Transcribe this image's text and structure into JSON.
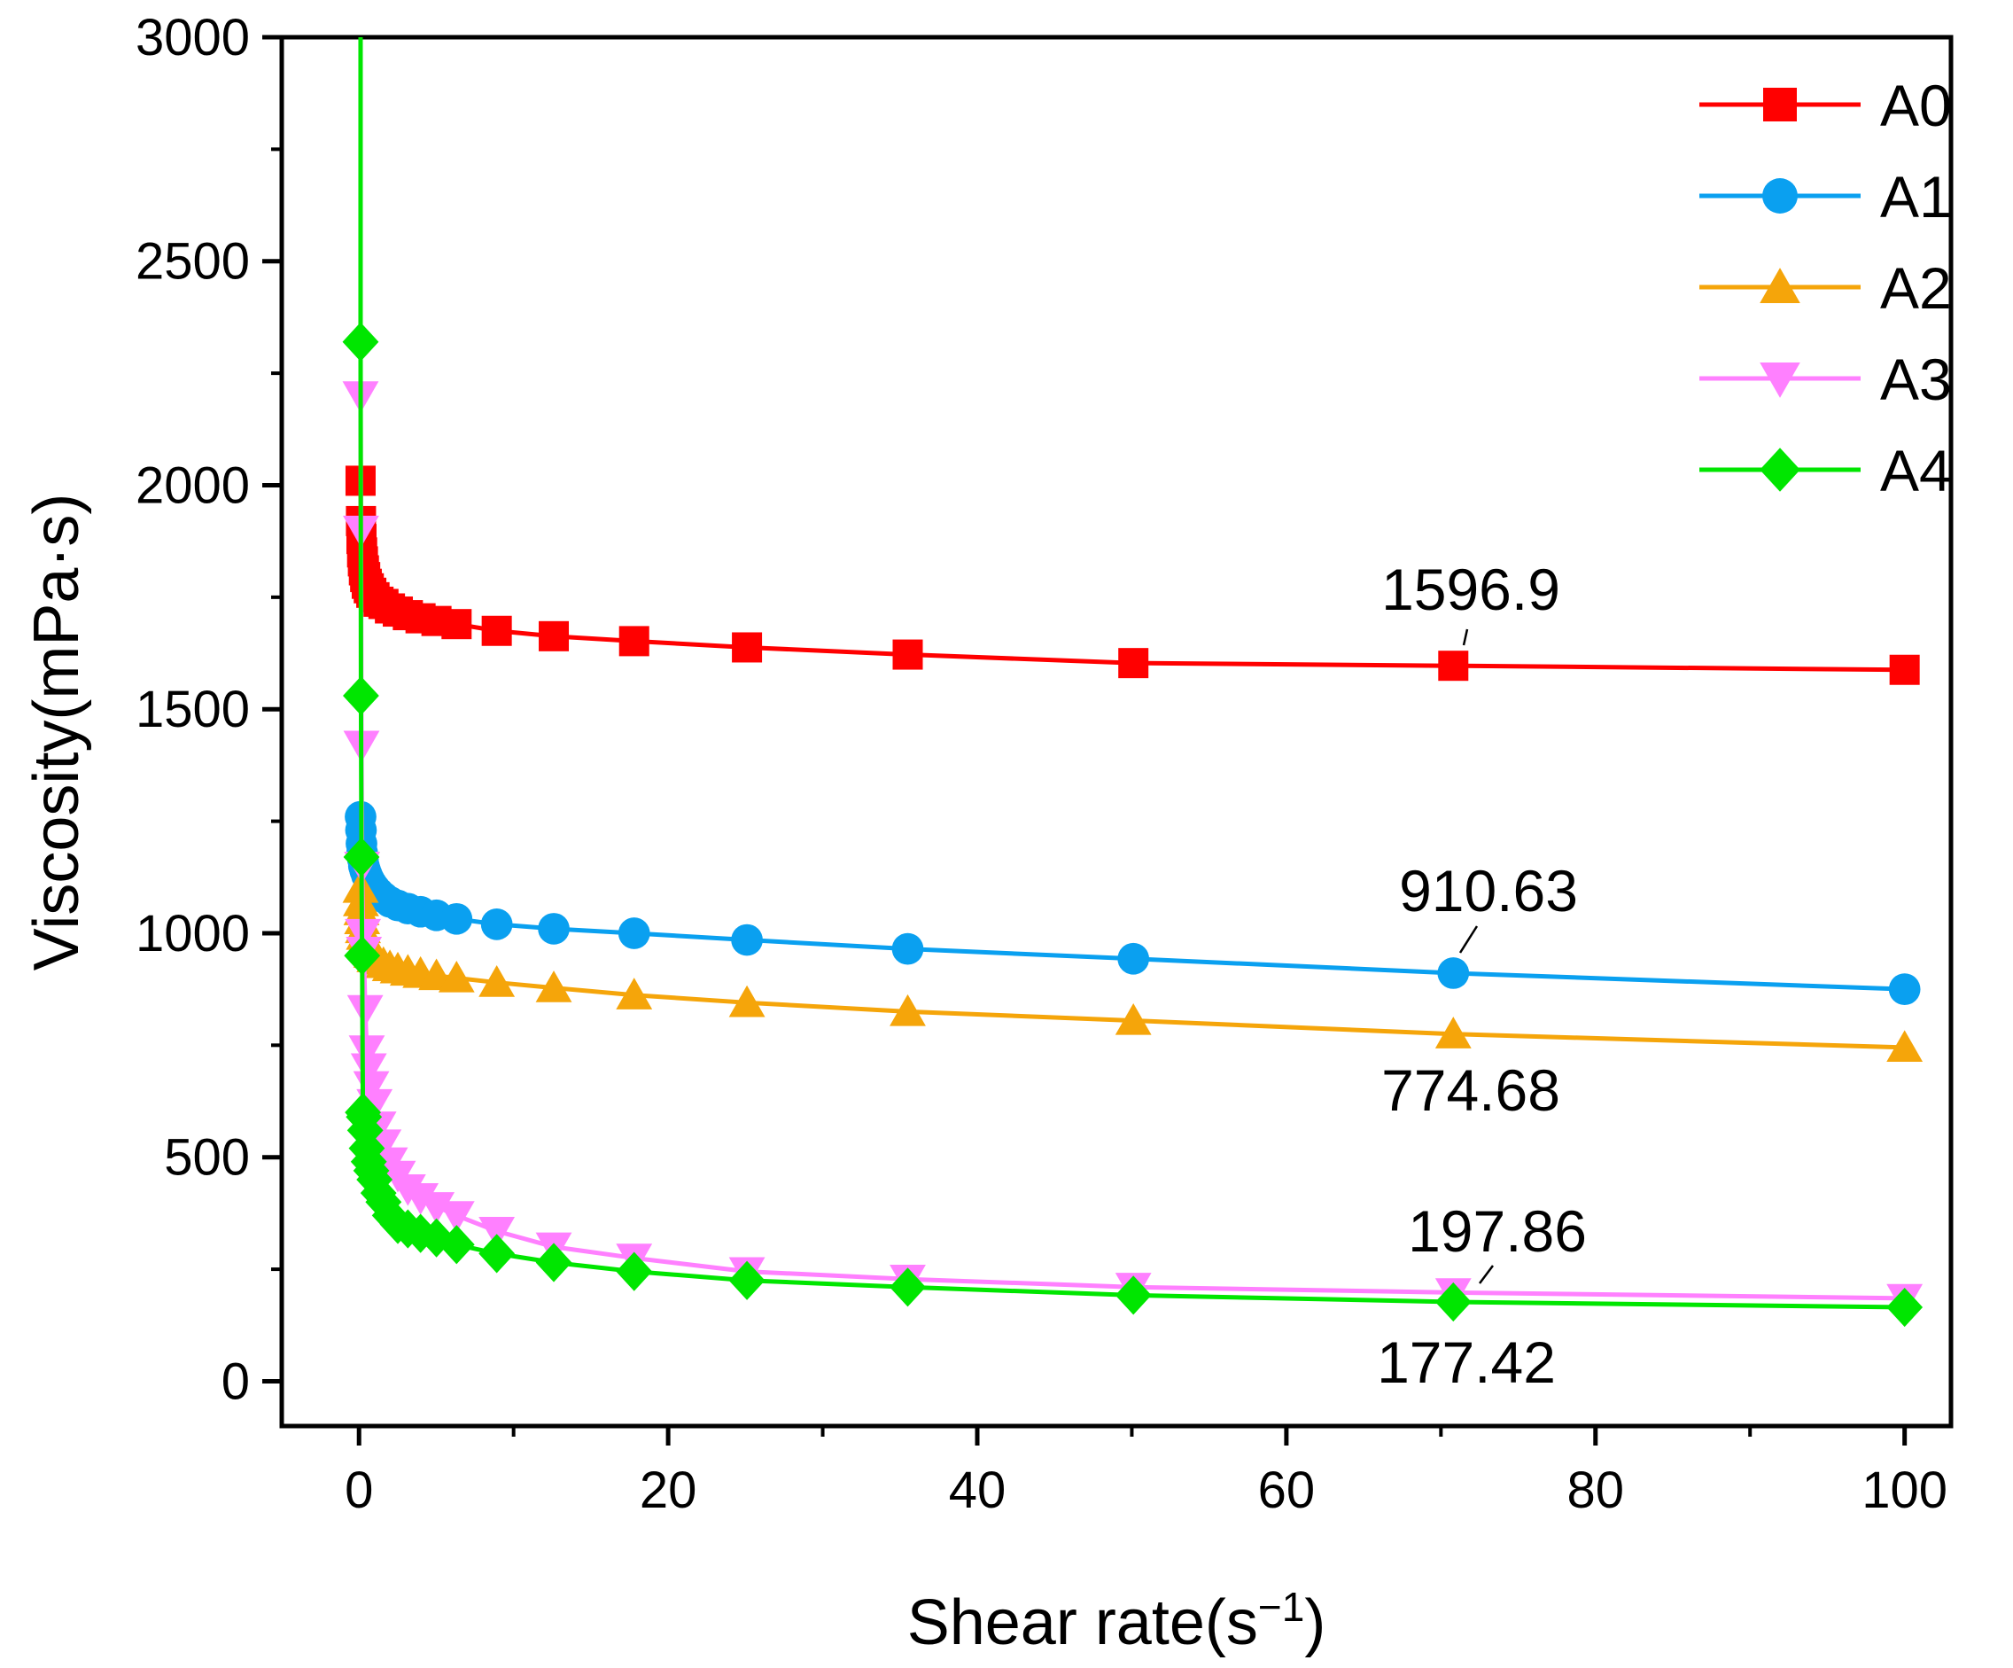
{
  "chart_data": {
    "type": "line",
    "xlabel": "Shear rate(s",
    "xlabel_sup": "−1",
    "xlabel_end": ")",
    "ylabel": "Viscosity(mPa·s)",
    "xlim": [
      -5,
      103
    ],
    "ylim": [
      -100,
      3000
    ],
    "xticks": [
      0,
      20,
      40,
      60,
      80,
      100
    ],
    "yticks": [
      0,
      500,
      1000,
      1500,
      2000,
      2500,
      3000
    ],
    "legend_position": "top-right",
    "x": [
      0.1,
      0.126,
      0.158,
      0.2,
      0.251,
      0.316,
      0.398,
      0.501,
      0.631,
      0.794,
      1.0,
      1.26,
      1.58,
      2.0,
      2.51,
      3.16,
      3.98,
      5.01,
      6.31,
      8.91,
      12.6,
      17.8,
      25.1,
      35.5,
      50.1,
      70.8,
      100
    ],
    "series": [
      {
        "name": "A0",
        "color": "#ff0000",
        "marker": "square",
        "values": [
          2010,
          1920,
          1880,
          1850,
          1830,
          1810,
          1795,
          1780,
          1770,
          1760,
          1750,
          1740,
          1735,
          1725,
          1718,
          1710,
          1703,
          1697,
          1690,
          1675,
          1663,
          1652,
          1638,
          1622,
          1603,
          1597,
          1588
        ]
      },
      {
        "name": "A1",
        "color": "#0aa0f0",
        "marker": "circle",
        "values": [
          1260,
          1230,
          1200,
          1180,
          1165,
          1150,
          1140,
          1130,
          1120,
          1110,
          1100,
          1090,
          1080,
          1070,
          1062,
          1055,
          1048,
          1040,
          1032,
          1020,
          1010,
          1000,
          985,
          965,
          943,
          911,
          875
        ]
      },
      {
        "name": "A2",
        "color": "#f5a50a",
        "marker": "triangle-up",
        "values": [
          1100,
          1070,
          1050,
          1030,
          1010,
          995,
          985,
          975,
          965,
          955,
          945,
          940,
          932,
          925,
          920,
          915,
          910,
          905,
          900,
          890,
          878,
          862,
          845,
          825,
          805,
          775,
          745
        ]
      },
      {
        "name": "A3",
        "color": "#ff80ff",
        "marker": "triangle-down",
        "values": [
          2200,
          1900,
          1420,
          1150,
          1000,
          960,
          830,
          740,
          700,
          660,
          620,
          570,
          530,
          490,
          460,
          430,
          410,
          390,
          370,
          335,
          300,
          275,
          245,
          228,
          210,
          198,
          185
        ]
      },
      {
        "name": "A4",
        "color": "#00e600",
        "marker": "diamond",
        "values": [
          2320,
          1530,
          1170,
          950,
          600,
          590,
          560,
          520,
          490,
          470,
          450,
          420,
          400,
          370,
          350,
          340,
          330,
          320,
          305,
          285,
          265,
          245,
          225,
          210,
          192,
          177,
          165
        ]
      }
    ],
    "annotations": [
      {
        "text": "1596.9",
        "series": "A0",
        "x": 70.8,
        "y": 1597
      },
      {
        "text": "910.63",
        "series": "A1",
        "x": 70.8,
        "y": 911
      },
      {
        "text": "774.68",
        "series": "A2",
        "x": 70.8,
        "y": 775
      },
      {
        "text": "197.86",
        "series": "A3",
        "x": 70.8,
        "y": 198
      },
      {
        "text": "177.42",
        "series": "A4",
        "x": 70.8,
        "y": 177
      }
    ]
  }
}
